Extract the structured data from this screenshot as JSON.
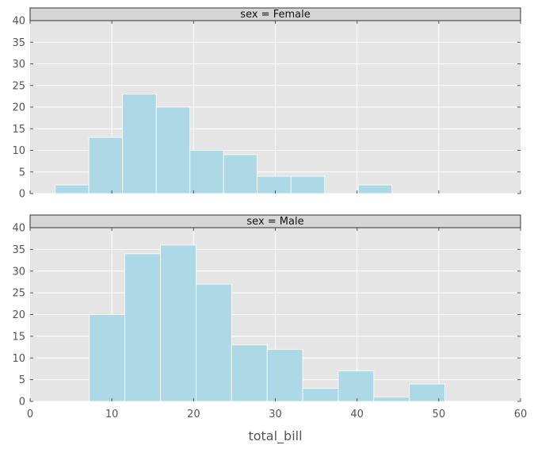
{
  "chart_data": [
    {
      "type": "bar",
      "panel_title": "sex = Female",
      "xlim": [
        0,
        60
      ],
      "ylim": [
        0,
        40
      ],
      "yticks": [
        0,
        5,
        10,
        15,
        20,
        25,
        30,
        35,
        40
      ],
      "grid": true,
      "bar_color": "#add8e6",
      "bins": [
        {
          "x0": 3.07,
          "x1": 7.19,
          "count": 2
        },
        {
          "x0": 7.19,
          "x1": 11.31,
          "count": 13
        },
        {
          "x0": 11.31,
          "x1": 15.43,
          "count": 23
        },
        {
          "x0": 15.43,
          "x1": 19.55,
          "count": 20
        },
        {
          "x0": 19.55,
          "x1": 23.67,
          "count": 10
        },
        {
          "x0": 23.67,
          "x1": 27.79,
          "count": 9
        },
        {
          "x0": 27.79,
          "x1": 31.91,
          "count": 4
        },
        {
          "x0": 31.91,
          "x1": 36.03,
          "count": 4
        },
        {
          "x0": 36.03,
          "x1": 40.15,
          "count": 0
        },
        {
          "x0": 40.15,
          "x1": 44.27,
          "count": 2
        }
      ]
    },
    {
      "type": "bar",
      "panel_title": "sex = Male",
      "xlim": [
        0,
        60
      ],
      "ylim": [
        0,
        40
      ],
      "yticks": [
        0,
        5,
        10,
        15,
        20,
        25,
        30,
        35,
        40
      ],
      "xticks": [
        0,
        10,
        20,
        30,
        40,
        50,
        60
      ],
      "xlabel": "total_bill",
      "grid": true,
      "bar_color": "#add8e6",
      "bins": [
        {
          "x0": 7.25,
          "x1": 11.6,
          "count": 20
        },
        {
          "x0": 11.6,
          "x1": 15.95,
          "count": 34
        },
        {
          "x0": 15.95,
          "x1": 20.3,
          "count": 36
        },
        {
          "x0": 20.3,
          "x1": 24.65,
          "count": 27
        },
        {
          "x0": 24.65,
          "x1": 29.0,
          "count": 13
        },
        {
          "x0": 29.0,
          "x1": 33.35,
          "count": 12
        },
        {
          "x0": 33.35,
          "x1": 37.7,
          "count": 3
        },
        {
          "x0": 37.7,
          "x1": 42.05,
          "count": 7
        },
        {
          "x0": 42.05,
          "x1": 46.4,
          "count": 1
        },
        {
          "x0": 46.4,
          "x1": 50.75,
          "count": 4
        }
      ]
    }
  ]
}
